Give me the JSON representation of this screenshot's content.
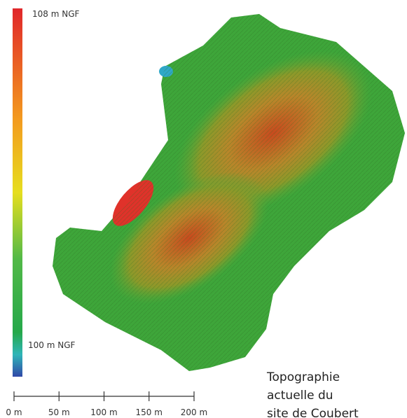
{
  "legend": {
    "top_label": "108 m NGF",
    "bottom_label": "100 m NGF"
  },
  "scale_bar": {
    "labels": [
      "0 m",
      "50 m",
      "100 m",
      "150 m",
      "200 m"
    ]
  },
  "caption": {
    "lines": [
      "Topographie",
      "actuelle du",
      "site de Coubert"
    ]
  }
}
